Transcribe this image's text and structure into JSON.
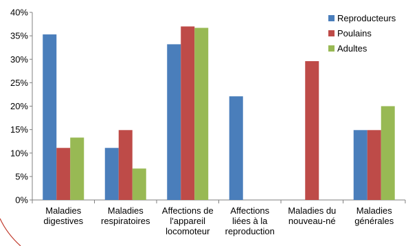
{
  "chart_data": {
    "type": "bar",
    "categories": [
      [
        "Maladies",
        "digestives"
      ],
      [
        "Maladies",
        "respiratoires"
      ],
      [
        "Affections de",
        "l'appareil",
        "locomoteur"
      ],
      [
        "Affections",
        "liées à la",
        "reproduction"
      ],
      [
        "Maladies du",
        "nouveau-né"
      ],
      [
        "Maladies",
        "générales"
      ]
    ],
    "series": [
      {
        "name": "Reproducteurs",
        "color": "#4A7EBB",
        "values": [
          35.3,
          11.1,
          33.2,
          22.1,
          0,
          14.9
        ]
      },
      {
        "name": "Poulains",
        "color": "#BE4B48",
        "values": [
          11.1,
          14.9,
          37.0,
          0,
          29.6,
          14.9
        ]
      },
      {
        "name": "Adultes",
        "color": "#98B954",
        "values": [
          13.3,
          6.7,
          36.7,
          0,
          0,
          20.0
        ]
      }
    ],
    "ylim": [
      0,
      40
    ],
    "yticks": [
      0,
      5,
      10,
      15,
      20,
      25,
      30,
      35,
      40
    ],
    "ytick_labels": [
      "0%",
      "5%",
      "10%",
      "15%",
      "20%",
      "25%",
      "30%",
      "35%",
      "40%"
    ],
    "legend_position": "top-right",
    "grid": false,
    "title": "",
    "xlabel": "",
    "ylabel": ""
  }
}
